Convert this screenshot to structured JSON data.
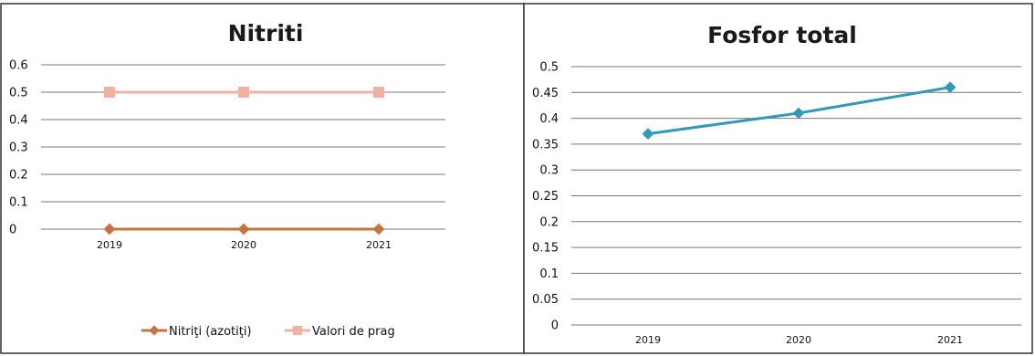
{
  "chart_data": [
    {
      "type": "line",
      "title": "Nitriti",
      "categories": [
        "2019",
        "2020",
        "2021"
      ],
      "y_ticks": [
        "0",
        "0.1",
        "0.2",
        "0.3",
        "0.4",
        "0.5",
        "0.6"
      ],
      "ylim": [
        0,
        0.6
      ],
      "grid": true,
      "legend_position": "bottom",
      "series": [
        {
          "name": "Nitriţi (azotiţi)",
          "values": [
            0,
            0,
            0
          ],
          "color": "#C8733A",
          "marker": "diamond"
        },
        {
          "name": "Valori de prag",
          "values": [
            0.5,
            0.5,
            0.5
          ],
          "color": "#F2B0A0",
          "marker": "square"
        }
      ]
    },
    {
      "type": "line",
      "title": "Fosfor total",
      "categories": [
        "2019",
        "2020",
        "2021"
      ],
      "y_ticks": [
        "0",
        "0.05",
        "0.1",
        "0.15",
        "0.2",
        "0.25",
        "0.3",
        "0.35",
        "0.4",
        "0.45",
        "0.5"
      ],
      "ylim": [
        0,
        0.5
      ],
      "grid": true,
      "legend_position": "none",
      "series": [
        {
          "values": [
            0.37,
            0.41,
            0.46
          ],
          "color": "#3399B8",
          "marker": "diamond"
        }
      ]
    }
  ]
}
